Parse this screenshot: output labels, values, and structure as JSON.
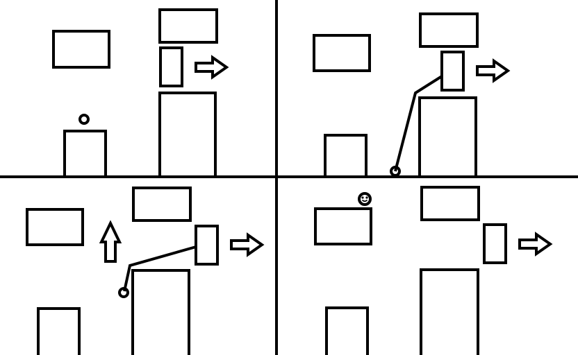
{
  "colors": {
    "ink": "#000000",
    "paper": "#ffffff"
  },
  "panels": [
    {
      "id": "panel-1",
      "player": "round-ball",
      "arrows": [
        "arrow-right"
      ]
    },
    {
      "id": "panel-2",
      "player": "ball-swinging-on-rope",
      "arrows": [
        "arrow-right"
      ]
    },
    {
      "id": "panel-3",
      "player": "ball-swinging-on-rope",
      "arrows": [
        "arrow-up",
        "arrow-right"
      ]
    },
    {
      "id": "panel-4",
      "player": "smiling-ball",
      "arrows": [
        "arrow-right"
      ]
    }
  ]
}
